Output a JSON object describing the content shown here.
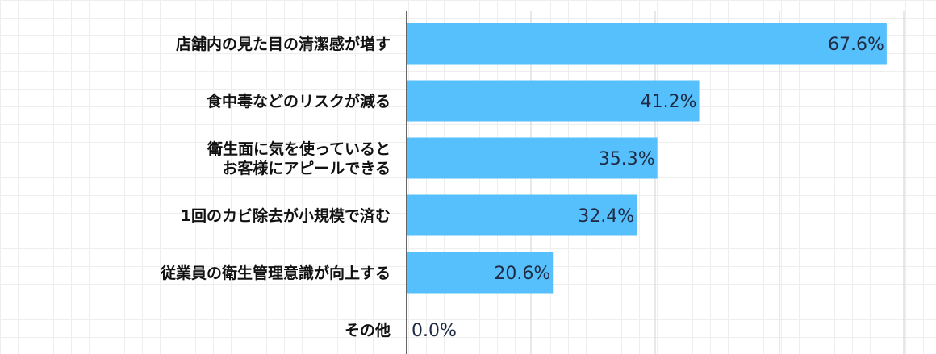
{
  "chart_data": {
    "type": "bar",
    "orientation": "horizontal",
    "categories": [
      [
        "店舗内の見た目の清潔感が増す"
      ],
      [
        "食中毒などのリスクが減る"
      ],
      [
        "衛生面に気を使っていると",
        "お客様にアピールできる"
      ],
      [
        "1回のカビ除去が小規模で済む"
      ],
      [
        "従業員の衛生管理意識が向上する"
      ],
      [
        "その他"
      ]
    ],
    "values": [
      67.6,
      41.2,
      35.3,
      32.4,
      20.6,
      0.0
    ],
    "value_labels": [
      "67.6%",
      "41.2%",
      "35.3%",
      "32.4%",
      "20.6%",
      "0.0%"
    ],
    "title": "",
    "xlabel": "",
    "ylabel": "",
    "xlim": [
      0,
      70
    ],
    "grid": true,
    "legend": "none",
    "colors": {
      "bar": "#55c0fb",
      "value_text": "#1f2b44",
      "category_text": "#111111",
      "axis": "#333333",
      "gridline": "#d9d9d9"
    }
  }
}
